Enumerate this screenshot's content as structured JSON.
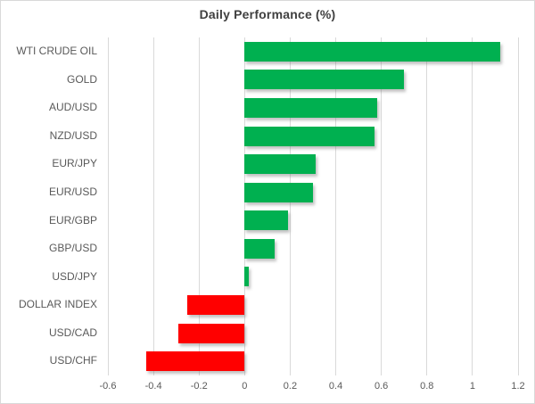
{
  "title": "Daily Performance (%)",
  "chart_data": {
    "type": "bar",
    "orientation": "horizontal",
    "title": "Daily Performance (%)",
    "categories": [
      "WTI CRUDE OIL",
      "GOLD",
      "AUD/USD",
      "NZD/USD",
      "EUR/JPY",
      "EUR/USD",
      "EUR/GBP",
      "GBP/USD",
      "USD/JPY",
      "DOLLAR INDEX",
      "USD/CAD",
      "USD/CHF"
    ],
    "values": [
      1.12,
      0.7,
      0.58,
      0.57,
      0.31,
      0.3,
      0.19,
      0.13,
      0.02,
      -0.25,
      -0.29,
      -0.43
    ],
    "xlim": [
      -0.6,
      1.2
    ],
    "x_tick_step": 0.2,
    "x_tick_labels": [
      "-0.6",
      "-0.4",
      "-0.2",
      "0",
      "0.2",
      "0.4",
      "0.6",
      "0.8",
      "1",
      "1.2"
    ],
    "grid": true,
    "legend": false,
    "value_labels": false
  },
  "style": {
    "positive_color": "#00B050",
    "negative_color": "#FF0000",
    "title_color": "#404040",
    "axis_text_color": "#595959",
    "gridline_color": "#D9D9D9",
    "border_color": "#D9D9D9",
    "background": "#FFFFFF"
  }
}
